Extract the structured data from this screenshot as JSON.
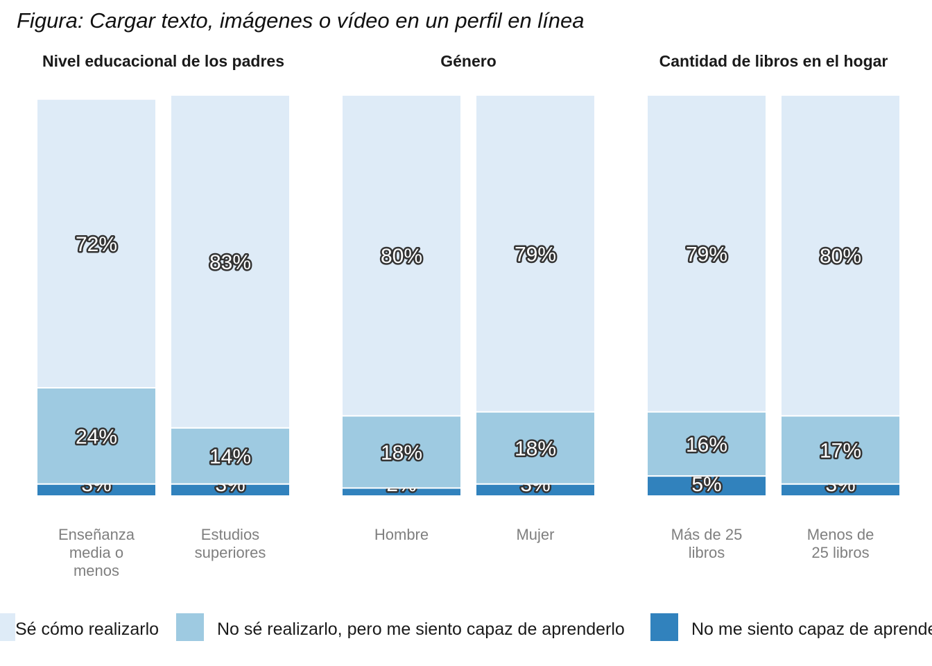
{
  "figure_title": "Figura: Cargar texto, imágenes o vídeo en un perfil en línea",
  "colors": {
    "se_como": "#deebf7",
    "capaz_aprender": "#9ecae1",
    "no_capaz": "#3182bd",
    "category_text": "#7f7f7f"
  },
  "legend": [
    {
      "name": "Sé cómo realizarlo",
      "color": "#deebf7"
    },
    {
      "name": "No sé realizarlo, pero me siento capaz de aprenderlo",
      "color": "#9ecae1"
    },
    {
      "name": "No me siento capaz de aprenderlo",
      "color": "#3182bd"
    }
  ],
  "chart_data": [
    {
      "type": "bar",
      "stacked": true,
      "title": "Nivel educacional de los padres",
      "categories": [
        [
          "Enseñanza",
          "media o",
          "menos"
        ],
        [
          "Estudios",
          "superiores"
        ]
      ],
      "series": [
        {
          "name": "No me siento capaz de aprenderlo",
          "values": [
            3,
            3
          ],
          "labels": [
            "3%",
            "3%"
          ]
        },
        {
          "name": "No sé realizarlo, pero me siento capaz de aprenderlo",
          "values": [
            24,
            14
          ],
          "labels": [
            "24%",
            "14%"
          ]
        },
        {
          "name": "Sé cómo realizarlo",
          "values": [
            72,
            83
          ],
          "labels": [
            "72%",
            "83%"
          ]
        }
      ]
    },
    {
      "type": "bar",
      "stacked": true,
      "title": "Género",
      "categories": [
        [
          "Hombre"
        ],
        [
          "Mujer"
        ]
      ],
      "series": [
        {
          "name": "No me siento capaz de aprenderlo",
          "values": [
            2,
            3
          ],
          "labels": [
            "2%",
            "3%"
          ]
        },
        {
          "name": "No sé realizarlo, pero me siento capaz de aprenderlo",
          "values": [
            18,
            18
          ],
          "labels": [
            "18%",
            "18%"
          ]
        },
        {
          "name": "Sé cómo realizarlo",
          "values": [
            80,
            79
          ],
          "labels": [
            "80%",
            "79%"
          ]
        }
      ]
    },
    {
      "type": "bar",
      "stacked": true,
      "title": "Cantidad de libros en el hogar",
      "categories": [
        [
          "Más de 25",
          "libros"
        ],
        [
          "Menos de",
          "25 libros"
        ]
      ],
      "series": [
        {
          "name": "No me siento capaz de aprenderlo",
          "values": [
            5,
            3
          ],
          "labels": [
            "5%",
            "3%"
          ]
        },
        {
          "name": "No sé realizarlo, pero me siento capaz de aprenderlo",
          "values": [
            16,
            17
          ],
          "labels": [
            "16%",
            "17%"
          ]
        },
        {
          "name": "Sé cómo realizarlo",
          "values": [
            79,
            80
          ],
          "labels": [
            "79%",
            "80%"
          ]
        }
      ]
    }
  ]
}
